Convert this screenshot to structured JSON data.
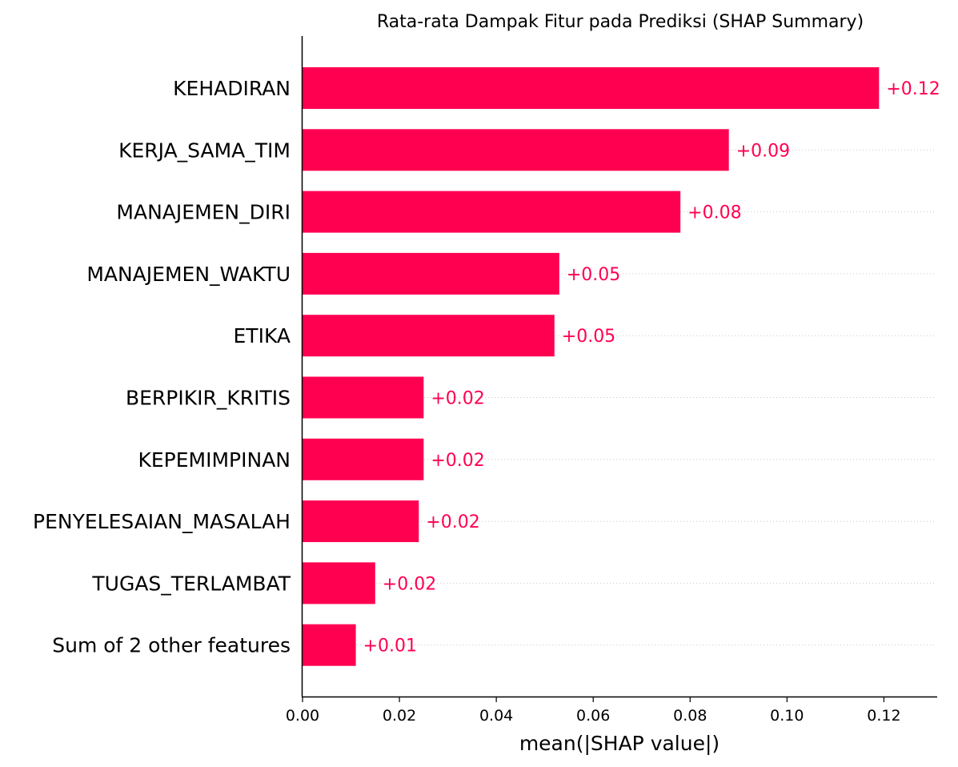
{
  "chart_data": {
    "type": "bar",
    "orientation": "horizontal",
    "title": "Rata-rata Dampak Fitur pada Prediksi (SHAP Summary)",
    "xlabel": "mean(|SHAP value|)",
    "ylabel": "",
    "xlim": [
      0,
      0.131
    ],
    "xticks": [
      0.0,
      0.02,
      0.04,
      0.06,
      0.08,
      0.1,
      0.12
    ],
    "xtick_labels": [
      "0.00",
      "0.02",
      "0.04",
      "0.06",
      "0.08",
      "0.10",
      "0.12"
    ],
    "categories": [
      "KEHADIRAN",
      "KERJA_SAMA_TIM",
      "MANAJEMEN_DIRI",
      "MANAJEMEN_WAKTU",
      "ETIKA",
      "BERPIKIR_KRITIS",
      "KEPEMIMPINAN",
      "PENYELESAIAN_MASALAH",
      "TUGAS_TERLAMBAT",
      "Sum of 2 other features"
    ],
    "values": [
      0.119,
      0.088,
      0.078,
      0.053,
      0.052,
      0.025,
      0.025,
      0.024,
      0.015,
      0.011
    ],
    "value_labels": [
      "+0.12",
      "+0.09",
      "+0.08",
      "+0.05",
      "+0.05",
      "+0.02",
      "+0.02",
      "+0.02",
      "+0.02",
      "+0.01"
    ],
    "grid": "dotted row guides",
    "legend": "none",
    "colors": {
      "bar": "#ff0051",
      "label": "#ff0051",
      "guide": "#c8c8c8",
      "axis": "#000000"
    }
  }
}
